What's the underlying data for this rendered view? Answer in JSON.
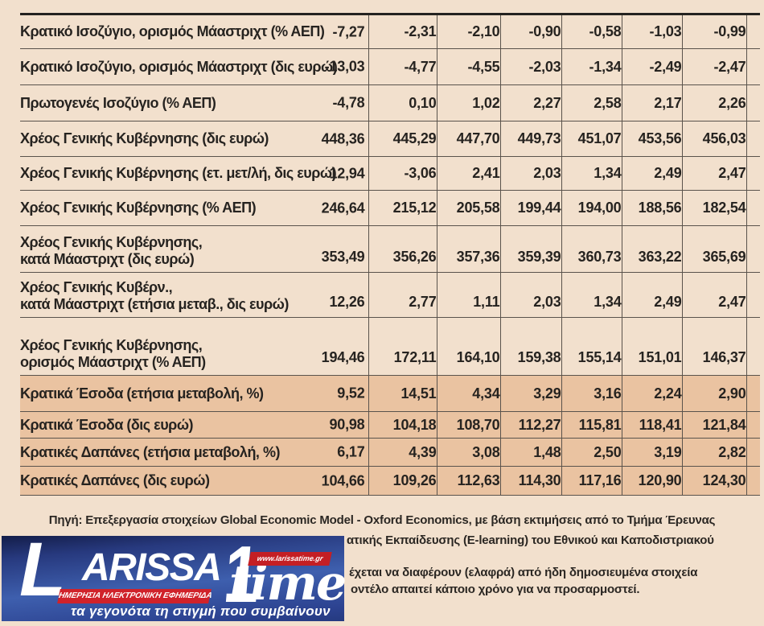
{
  "colors": {
    "page_bg": "#f2e0cd",
    "highlight_row_bg": "#eac3a1",
    "table_border": "#5a534c",
    "table_top_border": "#242220",
    "text": "#262320",
    "logo_blue_dark": "#131d49",
    "logo_blue_mid": "#3e5fae",
    "logo_red": "#d0222a",
    "logo_white": "#ffffff"
  },
  "table": {
    "rows": [
      {
        "label_lines": [
          "Κρατικό Ισοζύγιο, ορισμός Μάαστριχτ (% ΑΕΠ)"
        ],
        "values": [
          "-7,27",
          "-2,31",
          "-2,10",
          "-0,90",
          "-0,58",
          "-1,03",
          "-0,99"
        ],
        "highlight": false
      },
      {
        "label_lines": [
          "Κρατικό Ισοζύγιο, ορισμός Μάαστριχτ (δις ευρώ)"
        ],
        "values": [
          "-13,03",
          "-4,77",
          "-4,55",
          "-2,03",
          "-1,34",
          "-2,49",
          "-2,47"
        ],
        "highlight": false
      },
      {
        "label_lines": [
          "Πρωτογενές Ισοζύγιο (% ΑΕΠ)"
        ],
        "values": [
          "-4,78",
          "0,10",
          "1,02",
          "2,27",
          "2,58",
          "2,17",
          "2,26"
        ],
        "highlight": false
      },
      {
        "label_lines": [
          "Χρέος Γενικής Κυβέρνησης (δις ευρώ)"
        ],
        "values": [
          "448,36",
          "445,29",
          "447,70",
          "449,73",
          "451,07",
          "453,56",
          "456,03"
        ],
        "highlight": false
      },
      {
        "label_lines": [
          "Χρέος Γενικής Κυβέρνησης (ετ. μετ/λή, δις ευρώ)"
        ],
        "values": [
          "12,94",
          "-3,06",
          "2,41",
          "2,03",
          "1,34",
          "2,49",
          "2,47"
        ],
        "highlight": false
      },
      {
        "label_lines": [
          "Χρέος Γενικής Κυβέρνησης (% ΑΕΠ)"
        ],
        "values": [
          "246,64",
          "215,12",
          "205,58",
          "199,44",
          "194,00",
          "188,56",
          "182,54"
        ],
        "highlight": false
      },
      {
        "label_lines": [
          "Χρέος Γενικής Κυβέρνησης,",
          "κατά Μάαστριχτ (δις ευρώ)"
        ],
        "values": [
          "353,49",
          "356,26",
          "357,36",
          "359,39",
          "360,73",
          "363,22",
          "365,69"
        ],
        "highlight": false
      },
      {
        "label_lines": [
          "Χρέος Γενικής Κυβέρν.,",
          "κατά Μάαστριχτ (ετήσια μεταβ., δις ευρώ)"
        ],
        "values": [
          "12,26",
          "2,77",
          "1,11",
          "2,03",
          "1,34",
          "2,49",
          "2,47"
        ],
        "highlight": false
      },
      {
        "label_lines": [
          "Χρέος Γενικής Κυβέρνησης,",
          "ορισμός Μάαστριχτ (% ΑΕΠ)"
        ],
        "values": [
          "194,46",
          "172,11",
          "164,10",
          "159,38",
          "155,14",
          "151,01",
          "146,37"
        ],
        "highlight": false
      },
      {
        "label_lines": [
          "Κρατικά Έσοδα (ετήσια μεταβολή, %)"
        ],
        "values": [
          "9,52",
          "14,51",
          "4,34",
          "3,29",
          "3,16",
          "2,24",
          "2,90"
        ],
        "highlight": true
      },
      {
        "label_lines": [
          "Κρατικά Έσοδα (δις ευρώ)"
        ],
        "values": [
          "90,98",
          "104,18",
          "108,70",
          "112,27",
          "115,81",
          "118,41",
          "121,84"
        ],
        "highlight": true
      },
      {
        "label_lines": [
          "Κρατικές Δαπάνες (ετήσια μεταβολή, %)"
        ],
        "values": [
          "6,17",
          "4,39",
          "3,08",
          "1,48",
          "2,50",
          "3,19",
          "2,82"
        ],
        "highlight": true
      },
      {
        "label_lines": [
          "Κρατικές Δαπάνες (δις ευρώ)"
        ],
        "values": [
          "104,66",
          "109,26",
          "112,63",
          "114,30",
          "117,16",
          "120,90",
          "124,30"
        ],
        "highlight": true
      }
    ]
  },
  "footer": {
    "line1": "Πηγή: Επεξεργασία στοιχείων Global Economic Model - Oxford Economics, με βάση εκτιμήσεις από το Τμήμα Έρευνας",
    "line2": "ατικής Εκπαίδευσης (E-learning) του Εθνικού και Καποδιστριακού",
    "line3": "έχεται να διαφέρουν (ελαφρά) από ήδη δημοσιευμένα στοιχεία",
    "line4": "οντέλο απαιτεί κάποιο χρόνο για να προσαρμοστεί."
  },
  "logo": {
    "letter_l": "L",
    "wordmark_rest": "ARISSA",
    "numeral": "1",
    "wordmark_accent": "time",
    "url": "www.larissatime.gr",
    "subtitle": "ΗΜΕΡΗΣΙΑ ΗΛΕΚΤΡΟΝΙΚΗ ΕΦΗΜΕΡΙΔΑ",
    "tagline": "τα γεγονότα τη στιγμή που συμβαίνουν"
  }
}
